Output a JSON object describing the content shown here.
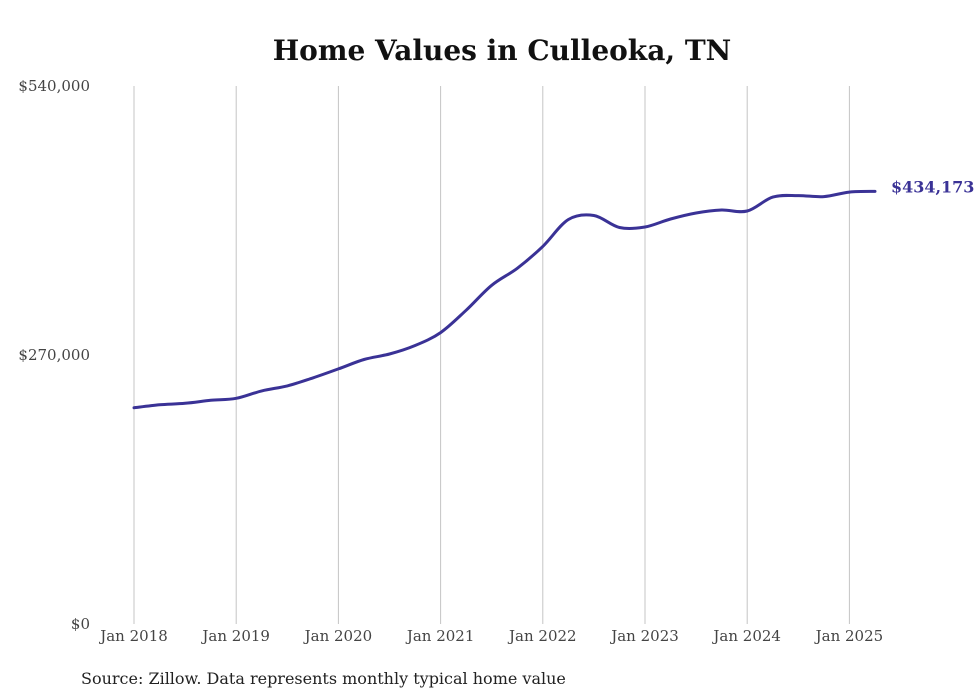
{
  "chart_data": {
    "type": "line",
    "title": "Home Values in Culleoka, TN",
    "source": "Source: Zillow. Data represents monthly typical home value",
    "ylim": [
      0,
      540000
    ],
    "y_ticks": [
      {
        "value": 0,
        "label": "$0"
      },
      {
        "value": 270000,
        "label": "$270,000"
      },
      {
        "value": 540000,
        "label": "$540,000"
      }
    ],
    "x_ticks": [
      {
        "value": "2018-01",
        "label": "Jan 2018"
      },
      {
        "value": "2019-01",
        "label": "Jan 2019"
      },
      {
        "value": "2020-01",
        "label": "Jan 2020"
      },
      {
        "value": "2021-01",
        "label": "Jan 2021"
      },
      {
        "value": "2022-01",
        "label": "Jan 2022"
      },
      {
        "value": "2023-01",
        "label": "Jan 2023"
      },
      {
        "value": "2024-01",
        "label": "Jan 2024"
      },
      {
        "value": "2025-01",
        "label": "Jan 2025"
      }
    ],
    "grid": "vertical",
    "line_color": "#3a3296",
    "end_label": "$434,173",
    "series": [
      {
        "x": [
          "2018-01",
          "2018-04",
          "2018-07",
          "2018-10",
          "2019-01",
          "2019-04",
          "2019-07",
          "2019-10",
          "2020-01",
          "2020-04",
          "2020-07",
          "2020-10",
          "2021-01",
          "2021-04",
          "2021-07",
          "2021-10",
          "2022-01",
          "2022-04",
          "2022-07",
          "2022-10",
          "2023-01",
          "2023-04",
          "2023-07",
          "2023-10",
          "2024-01",
          "2024-04",
          "2024-07",
          "2024-10",
          "2025-01",
          "2025-04"
        ],
        "values": [
          217000,
          220000,
          221500,
          224500,
          226500,
          234000,
          239000,
          247000,
          256000,
          265500,
          271000,
          279500,
          292500,
          315000,
          340000,
          357000,
          379000,
          406000,
          410000,
          398000,
          398500,
          406500,
          412500,
          415500,
          414500,
          428500,
          430000,
          429000,
          433500,
          434173
        ]
      }
    ]
  }
}
